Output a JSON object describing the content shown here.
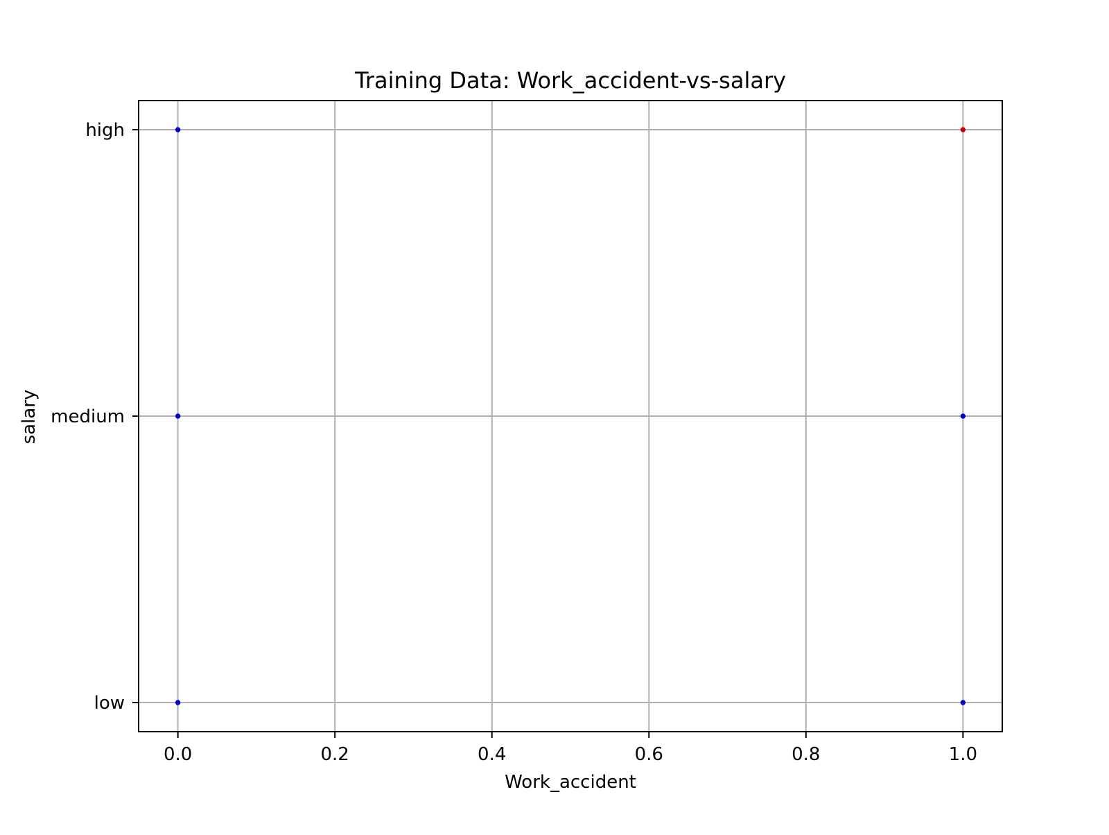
{
  "chart_data": {
    "type": "scatter",
    "title": "Training Data: Work_accident-vs-salary",
    "xlabel": "Work_accident",
    "ylabel": "salary",
    "xlim": [
      -0.05,
      1.05
    ],
    "xticks": [
      0.0,
      0.2,
      0.4,
      0.6,
      0.8,
      1.0
    ],
    "xtick_labels": [
      "0.0",
      "0.2",
      "0.4",
      "0.6",
      "0.8",
      "1.0"
    ],
    "y_categories": [
      "low",
      "medium",
      "high"
    ],
    "grid": true,
    "colors": {
      "class_0": "#0000cc",
      "class_1": "#cc0000",
      "grid": "#b0b0b0",
      "axes": "#000000"
    },
    "points": [
      {
        "x": 0,
        "y": "high",
        "class": "class_0"
      },
      {
        "x": 0,
        "y": "medium",
        "class": "class_0"
      },
      {
        "x": 0,
        "y": "low",
        "class": "class_0"
      },
      {
        "x": 1,
        "y": "high",
        "class": "class_1"
      },
      {
        "x": 1,
        "y": "medium",
        "class": "class_0"
      },
      {
        "x": 1,
        "y": "low",
        "class": "class_0"
      }
    ]
  }
}
